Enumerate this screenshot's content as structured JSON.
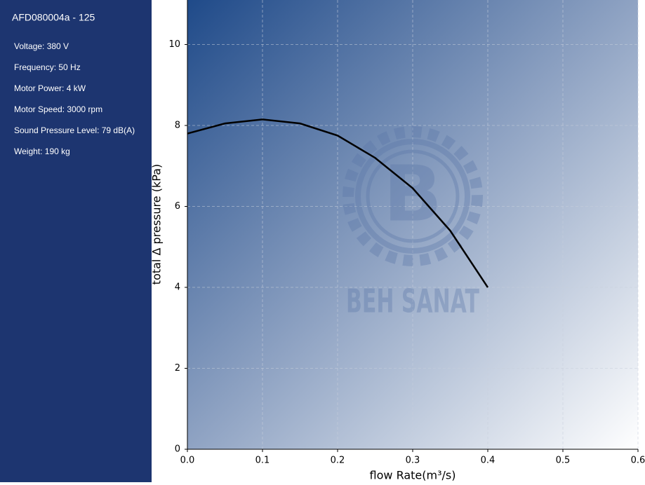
{
  "sidebar": {
    "title": "AFD080004a - 125",
    "specs": [
      "Voltage: 380 V",
      "Frequency: 50 Hz",
      "Motor Power: 4 kW",
      "Motor Speed: 3000 rpm",
      "Sound Pressure Level: 79 dB(A)",
      "Weight: 190 kg"
    ]
  },
  "watermark": {
    "letter": "B",
    "text": "BEH SANAT"
  },
  "chart_data": {
    "type": "line",
    "x_label": "flow Rate(m³/s)",
    "y_label": "total Δ pressure (kPa)",
    "x": [
      0,
      0.05,
      0.1,
      0.15,
      0.2,
      0.25,
      0.3,
      0.35,
      0.4
    ],
    "series": [
      {
        "color": "#000000",
        "values": [
          7.8,
          8.05,
          8.15,
          8.05,
          7.75,
          7.2,
          6.45,
          5.4,
          4.0
        ]
      }
    ],
    "xlim": [
      0,
      0.6
    ],
    "xticks": [
      {
        "value": 0,
        "label": "0.0"
      },
      0.1,
      0.2,
      0.3,
      0.4,
      0.5,
      0.6
    ],
    "ylim": [
      0,
      11.1
    ],
    "yticks": [
      0,
      2,
      4,
      6,
      8,
      10
    ],
    "grid": true
  }
}
